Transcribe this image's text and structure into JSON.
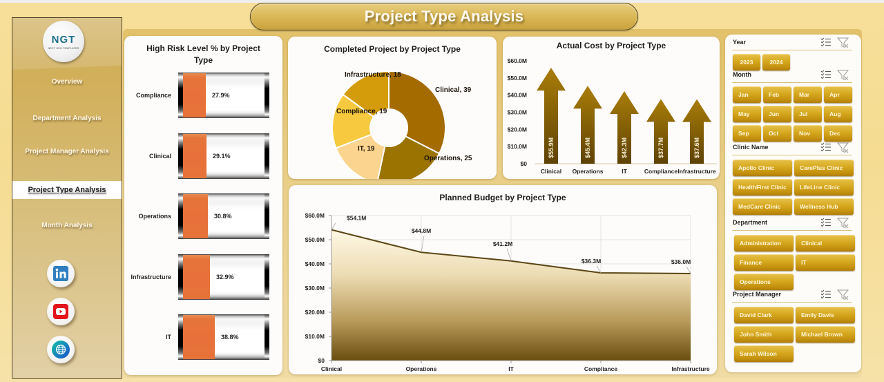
{
  "header": {
    "title": "Project Type Analysis"
  },
  "sidebar": {
    "logo": {
      "main": "NGT",
      "sub": "NEXT GEN TEMPLATES"
    },
    "items": [
      {
        "label": "Overview",
        "active": false
      },
      {
        "label": "Department Analysis",
        "active": false
      },
      {
        "label": "Project Manager Analysis",
        "active": false
      },
      {
        "label": "Project Type Analysis",
        "active": true
      },
      {
        "label": "Month Analysis",
        "active": false
      }
    ],
    "social": [
      {
        "icon": "linkedin-icon",
        "color": "#2f7fc1"
      },
      {
        "icon": "youtube-icon",
        "color": "#e3141b"
      },
      {
        "icon": "globe-icon",
        "color": "#1a73c8"
      }
    ]
  },
  "colors": {
    "orange": "#e8703a",
    "gold_dark": "#6b4a05",
    "gold": "#a8780d",
    "donut": [
      "#a36b00",
      "#9b7300",
      "#fbd590",
      "#f7c93e",
      "#d49c0b"
    ]
  },
  "chart_data": [
    {
      "type": "bar",
      "orientation": "horizontal",
      "title": "High Risk Level % by Project Type",
      "categories": [
        "Compliance",
        "Clinical",
        "Operations",
        "Infrastructure",
        "IT"
      ],
      "values": [
        27.9,
        29.1,
        30.8,
        32.9,
        38.8
      ],
      "labels": [
        "27.9%",
        "29.1%",
        "30.8%",
        "32.9%",
        "38.8%"
      ],
      "xlim": [
        0,
        100
      ]
    },
    {
      "type": "pie",
      "subtype": "donut",
      "title": "Completed Project by Project Type",
      "categories": [
        "Clinical",
        "Operations",
        "IT",
        "Compliance",
        "Infrastructure"
      ],
      "values": [
        39,
        25,
        19,
        19,
        18
      ],
      "labels": [
        "Clinical, 39",
        "Operations, 25",
        "IT, 19",
        "Compliance, 19",
        "Infrastructure, 18"
      ]
    },
    {
      "type": "bar",
      "title": "Actual Cost by Project Type",
      "categories": [
        "Clinical",
        "Operations",
        "IT",
        "Compliance",
        "Infrastructure"
      ],
      "values": [
        55.9,
        45.4,
        42.3,
        37.7,
        37.6
      ],
      "labels": [
        "$55.9M",
        "$45.4M",
        "$42.3M",
        "$37.7M",
        "$37.6M"
      ],
      "yticks": [
        "$0",
        "$10.0M",
        "$20.0M",
        "$30.0M",
        "$40.0M",
        "$50.0M",
        "$60.0M"
      ],
      "ylim": [
        0,
        60
      ],
      "unit": "$M"
    },
    {
      "type": "area",
      "title": "Planned Budget by Project Type",
      "categories": [
        "Clinical",
        "Operations",
        "IT",
        "Compliance",
        "Infrastructure"
      ],
      "values": [
        54.1,
        44.8,
        41.2,
        36.3,
        36.0
      ],
      "labels": [
        "$54.1M",
        "$44.8M",
        "$41.2M",
        "$36.3M",
        "$36.0M"
      ],
      "yticks": [
        "$0",
        "$10.0M",
        "$20.0M",
        "$30.0M",
        "$40.0M",
        "$50.0M",
        "$60.0M"
      ],
      "ylim": [
        0,
        60
      ],
      "grid": true,
      "unit": "$M"
    }
  ],
  "slicers": {
    "year": {
      "label": "Year",
      "options": [
        "2023",
        "2024"
      ]
    },
    "month": {
      "label": "Month",
      "options": [
        "Jan",
        "Feb",
        "Mar",
        "Apr",
        "May",
        "Jun",
        "Jul",
        "Aug",
        "Sep",
        "Oct",
        "Nov",
        "Dec"
      ]
    },
    "clinic": {
      "label": "Clinic Name",
      "options": [
        "Apollo Clinic",
        "CarePlus Clinic",
        "HealthFirst Clinic",
        "LifeLine Clinic",
        "MedCare Clinic",
        "Wellness Hub"
      ]
    },
    "department": {
      "label": "Department",
      "options": [
        "Administration",
        "Clinical",
        "Finance",
        "IT",
        "Operations"
      ]
    },
    "manager": {
      "label": "Project Manager",
      "options": [
        "David Clark",
        "Emily Davis",
        "John Smith",
        "Michael Brown",
        "Sarah Wilson"
      ]
    }
  }
}
